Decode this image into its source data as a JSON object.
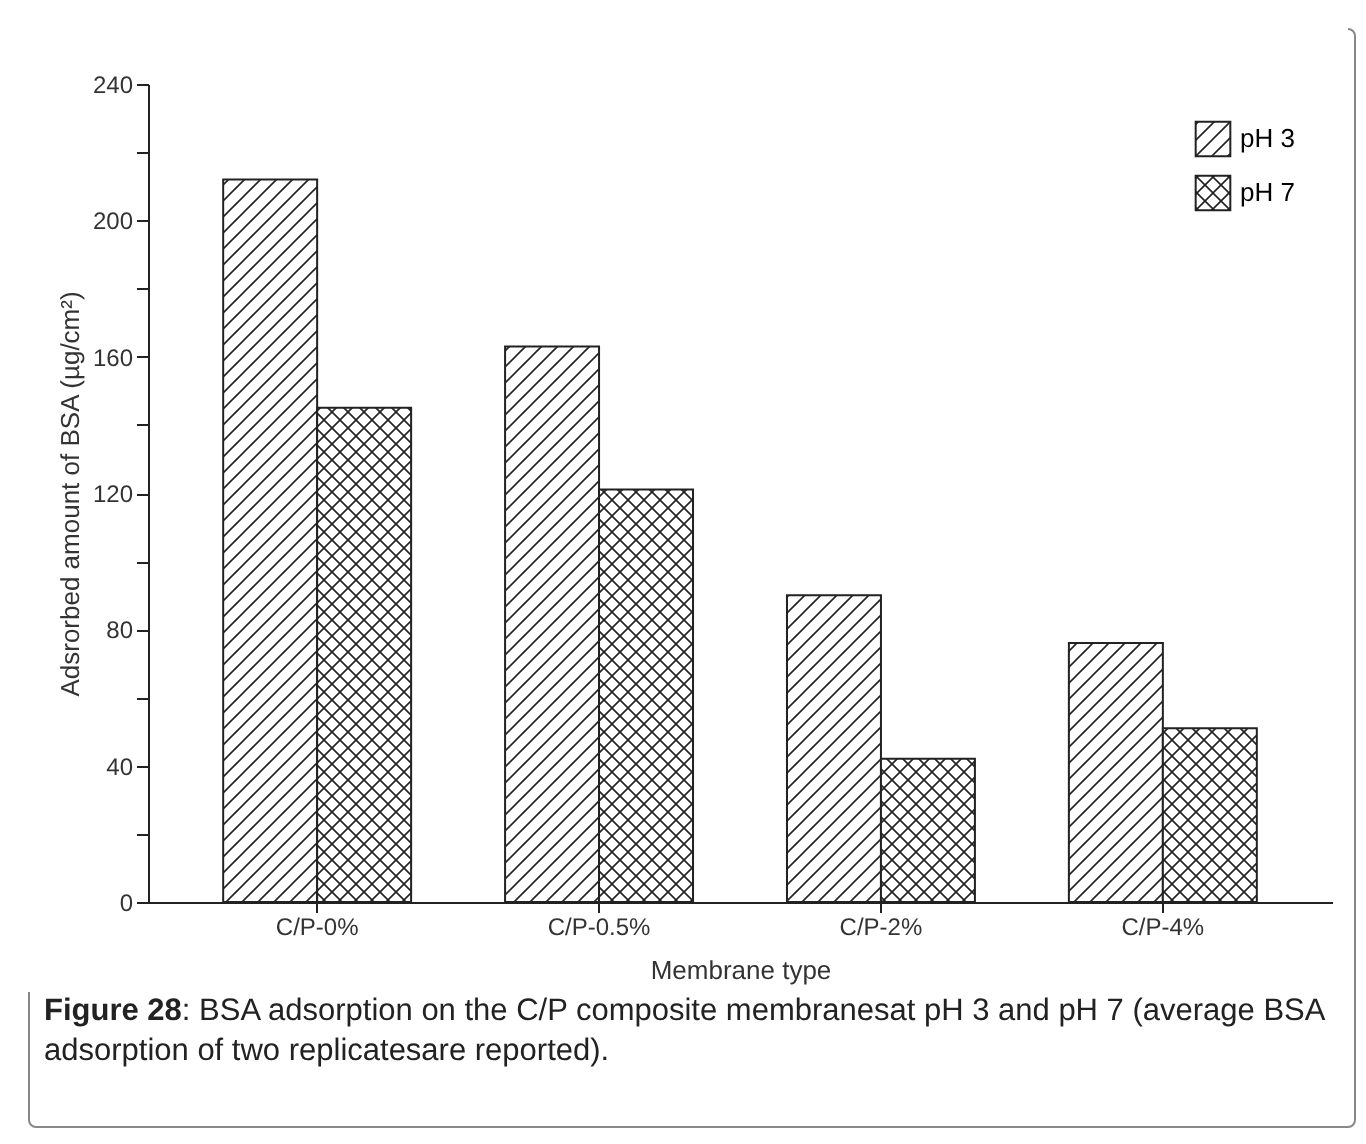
{
  "chart_data": {
    "type": "bar",
    "xlabel": "Membrane type",
    "ylabel": "Adsrorbed amount of BSA (µg/cm²)",
    "categories": [
      "C/P-0%",
      "C/P-0.5%",
      "C/P-2%",
      "C/P-4%"
    ],
    "series": [
      {
        "name": "pH 3",
        "color": "#222222",
        "values": [
          212,
          163,
          90,
          76
        ]
      },
      {
        "name": "pH 7",
        "color": "#222222",
        "values": [
          145,
          121,
          42,
          51
        ]
      }
    ],
    "ylim": [
      0,
      240
    ],
    "yticks": [
      0,
      {
        "value": 20,
        "label": null
      },
      40,
      {
        "value": 60,
        "label": null
      },
      80,
      {
        "value": 100,
        "label": null
      },
      120,
      {
        "value": 140,
        "label": null
      },
      160,
      {
        "value": 180,
        "label": null
      },
      200,
      {
        "value": 220,
        "label": null
      },
      240
    ],
    "grid": false,
    "legend": "top right",
    "annotations": [
      "Figure 28: BSA adsorption on the C/P composite membranesat pH 3 and pH 7 (average BSA adsorption of two replicatesare reported)."
    ]
  }
}
